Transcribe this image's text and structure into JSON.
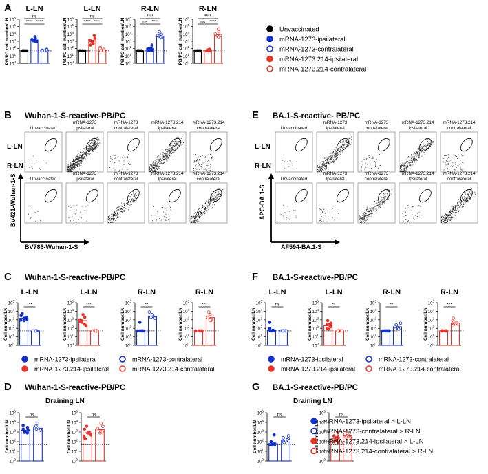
{
  "colors": {
    "blue": "#1431c8",
    "red": "#e3352b",
    "black": "#000000"
  },
  "panels": {
    "A": "A",
    "B": "B",
    "C": "C",
    "D": "D",
    "E": "E",
    "F": "F",
    "G": "G"
  },
  "labels": {
    "ns": "ns",
    "p4": "****",
    "p3": "***",
    "p2": "**",
    "ylabel_pbpc": "PB/PC cell number/LN",
    "ylabel_cell": "Cell number/LN",
    "ytick_e0": "0",
    "ytick_e1": "1",
    "ytick_e2": "2",
    "ytick_e3": "3",
    "ytick_e4": "4",
    "ytick_e5": "5",
    "L_LN": "L-LN",
    "R_LN": "R-LN",
    "unvaccinated": "Unvaccinated",
    "g_1273_ipsi": "mRNA-1273\nIpsilateral",
    "g_1273_contra": "mRNA-1273\ncontralateral",
    "g_214_ipsi": "mRNA-1273.214\nIpsilateral",
    "g_214_contra": "mRNA-1273.214\ncontralateral",
    "draining": "Draining LN"
  },
  "titles": {
    "B": "Wuhan-1-S-reactive-PB/PC",
    "E": "BA.1-S-reactive- PB/PC",
    "C": "Wuhan-1-S-reactive-PB/PC",
    "F": "BA.1-S-reactive-PB/PC",
    "D": "Wuhan-1-S-reactive-PB/PC",
    "G": "BA.1-S-reactive-PB/PC"
  },
  "axes": {
    "B_y": "BV421-Wuhan-1-S",
    "B_x": "BV786-Wuhan-1-S",
    "E_y": "APC-BA.1-S",
    "E_x": "AF594-BA.1-S"
  },
  "legends": {
    "A": [
      "Unvaccinated",
      "mRNA-1273-ipsilateral",
      "mRNA-1273-contralateral",
      "mRNA-1273.214-ipsilateral",
      "mRNA-1273.214-contralateral"
    ],
    "C": [
      "mRNA-1273-ipsilateral",
      "mRNA-1273-contralateral",
      "mRNA-1273.214-ipsilateral",
      "mRNA-1273.214-contralateral"
    ],
    "F": [
      "mRNA-1273-ipsilateral",
      "mRNA-1273-contralateral",
      "mRNA-1273.214-ipsilateral",
      "mRNA-1273.214-contralateral"
    ],
    "D": [
      "mRNA-1273-ipsilateral > L-LN",
      "mRNA-1273-contralateral > R-LN",
      "mRNA-1273.214-ipsilateral > L-LN",
      "mRNA-1273.214-contralateral > R-LN"
    ],
    "G": [
      "mRNA-1273-ipsilateral > L-LN",
      "mRNA-1273-contralateral > R-LN",
      "mRNA-1273.214-ipsilateral > L-LN",
      "mRNA-1273.214-contralateral > R-LN"
    ]
  },
  "chart_data": [
    {
      "panel": "A",
      "type": "bar",
      "title": "L-LN",
      "ylabel": "PB/PC cell number/LN",
      "yscale": "log",
      "ylim": [
        1,
        1000000
      ],
      "dotted_line": 50,
      "bars": [
        {
          "group": "Unvaccinated",
          "color": "black",
          "filled": true,
          "value": 50,
          "points": [
            50,
            50,
            50,
            50,
            50
          ]
        },
        {
          "group": "mRNA-1273-ipsilateral",
          "color": "blue",
          "filled": true,
          "value": 1500,
          "points": [
            4000,
            1800,
            1500,
            1000,
            1200,
            900,
            2500
          ]
        },
        {
          "group": "mRNA-1273-contralateral",
          "color": "blue",
          "filled": false,
          "value": 55,
          "points": [
            80,
            50,
            60,
            50,
            70,
            50
          ]
        }
      ],
      "sig": [
        {
          "a": 0,
          "b": 2,
          "label": "ns"
        },
        {
          "a": 0,
          "b": 1,
          "label": "****"
        },
        {
          "a": 1,
          "b": 2,
          "label": "****"
        }
      ]
    },
    {
      "panel": "A",
      "type": "bar",
      "title": "L-LN",
      "ylabel": "PB/PC cell number/LN",
      "yscale": "log",
      "ylim": [
        1,
        1000000
      ],
      "dotted_line": 50,
      "bars": [
        {
          "group": "Unvaccinated",
          "color": "black",
          "filled": true,
          "value": 50,
          "points": [
            50,
            50,
            50,
            50,
            50
          ]
        },
        {
          "group": "mRNA-1273.214-ipsilateral",
          "color": "red",
          "filled": true,
          "value": 1200,
          "points": [
            6000,
            2500,
            1200,
            700,
            1000,
            500,
            1500,
            300
          ]
        },
        {
          "group": "mRNA-1273.214-contralateral",
          "color": "red",
          "filled": false,
          "value": 60,
          "points": [
            150,
            50,
            80,
            60,
            50,
            100,
            50
          ]
        }
      ],
      "sig": [
        {
          "a": 0,
          "b": 2,
          "label": "ns"
        },
        {
          "a": 0,
          "b": 1,
          "label": "****"
        },
        {
          "a": 1,
          "b": 2,
          "label": "****"
        }
      ]
    },
    {
      "panel": "A",
      "type": "bar",
      "title": "R-LN",
      "ylabel": "PB/PC cell number/LN",
      "yscale": "log",
      "ylim": [
        1,
        1000000
      ],
      "dotted_line": 50,
      "bars": [
        {
          "group": "Unvaccinated",
          "color": "black",
          "filled": true,
          "value": 50,
          "points": [
            50,
            50,
            50,
            50,
            50
          ]
        },
        {
          "group": "mRNA-1273-ipsilateral",
          "color": "blue",
          "filled": true,
          "value": 110,
          "points": [
            50,
            60,
            300,
            100,
            80,
            120,
            60
          ]
        },
        {
          "group": "mRNA-1273-contralateral",
          "color": "blue",
          "filled": false,
          "value": 5000,
          "points": [
            20000,
            9000,
            5000,
            3000,
            4000,
            6000
          ]
        }
      ],
      "sig": [
        {
          "a": 0,
          "b": 2,
          "label": "****"
        },
        {
          "a": 0,
          "b": 1,
          "label": "ns"
        },
        {
          "a": 1,
          "b": 2,
          "label": "****"
        }
      ]
    },
    {
      "panel": "A",
      "type": "bar",
      "title": "R-LN",
      "ylabel": "PB/PC cell number/LN",
      "yscale": "log",
      "ylim": [
        1,
        1000000
      ],
      "dotted_line": 50,
      "bars": [
        {
          "group": "Unvaccinated",
          "color": "black",
          "filled": true,
          "value": 50,
          "points": [
            50,
            50,
            50,
            50,
            50
          ]
        },
        {
          "group": "mRNA-1273.214-ipsilateral",
          "color": "red",
          "filled": true,
          "value": 60,
          "points": [
            50,
            80,
            50,
            60,
            50,
            70
          ]
        },
        {
          "group": "mRNA-1273.214-contralateral",
          "color": "red",
          "filled": false,
          "value": 8000,
          "points": [
            50000,
            20000,
            8000,
            5000,
            6000,
            10000,
            4000
          ]
        }
      ],
      "sig": [
        {
          "a": 0,
          "b": 2,
          "label": "****"
        },
        {
          "a": 0,
          "b": 1,
          "label": "ns"
        },
        {
          "a": 1,
          "b": 2,
          "label": "****"
        }
      ]
    },
    {
      "panel": "C",
      "type": "bar",
      "title": "L-LN",
      "ylabel": "Cell number/LN",
      "yscale": "log",
      "ylim": [
        1,
        100000
      ],
      "dotted_line": 50,
      "bars": [
        {
          "group": "mRNA-1273-ipsilateral",
          "color": "blue",
          "filled": true,
          "value": 1500,
          "points": [
            5000,
            2000,
            1500,
            900,
            1200,
            3000,
            800
          ]
        },
        {
          "group": "mRNA-1273-contralateral",
          "color": "blue",
          "filled": false,
          "value": 50,
          "points": [
            50,
            50,
            50,
            50,
            50,
            50
          ]
        }
      ],
      "sig": [
        {
          "a": 0,
          "b": 1,
          "label": "***"
        }
      ]
    },
    {
      "panel": "C",
      "type": "bar",
      "title": "L-LN",
      "ylabel": "Cell number/LN",
      "yscale": "log",
      "ylim": [
        1,
        100000
      ],
      "dotted_line": 50,
      "bars": [
        {
          "group": "mRNA-1273.214-ipsilateral",
          "color": "red",
          "filled": true,
          "value": 800,
          "points": [
            4000,
            2000,
            800,
            300,
            500,
            1000,
            200,
            600
          ]
        },
        {
          "group": "mRNA-1273.214-contralateral",
          "color": "red",
          "filled": false,
          "value": 50,
          "points": [
            50,
            50,
            50,
            50,
            50,
            50,
            50
          ]
        }
      ],
      "sig": [
        {
          "a": 0,
          "b": 1,
          "label": "***"
        }
      ]
    },
    {
      "panel": "C",
      "type": "bar",
      "title": "R-LN",
      "ylabel": "Cell number/LN",
      "yscale": "log",
      "ylim": [
        1,
        100000
      ],
      "dotted_line": 50,
      "bars": [
        {
          "group": "mRNA-1273-ipsilateral",
          "color": "blue",
          "filled": true,
          "value": 60,
          "points": [
            50,
            50,
            50,
            50,
            50,
            50,
            500
          ]
        },
        {
          "group": "mRNA-1273-contralateral",
          "color": "blue",
          "filled": false,
          "value": 2500,
          "points": [
            8000,
            3000,
            2500,
            1500,
            2000,
            4000
          ]
        }
      ],
      "sig": [
        {
          "a": 0,
          "b": 1,
          "label": "**"
        }
      ]
    },
    {
      "panel": "C",
      "type": "bar",
      "title": "R-LN",
      "ylabel": "Cell number/LN",
      "yscale": "log",
      "ylim": [
        1,
        100000
      ],
      "dotted_line": 50,
      "bars": [
        {
          "group": "mRNA-1273.214-ipsilateral",
          "color": "red",
          "filled": true,
          "value": 50,
          "points": [
            50,
            50,
            50,
            50,
            50,
            50
          ]
        },
        {
          "group": "mRNA-1273.214-contralateral",
          "color": "red",
          "filled": false,
          "value": 1800,
          "points": [
            8000,
            4000,
            1800,
            800,
            1200,
            2500,
            1000
          ]
        }
      ],
      "sig": [
        {
          "a": 0,
          "b": 1,
          "label": "***"
        }
      ]
    },
    {
      "panel": "F",
      "type": "bar",
      "title": "L-LN",
      "ylabel": "Cell number/LN",
      "yscale": "log",
      "ylim": [
        1,
        100000
      ],
      "dotted_line": 50,
      "bars": [
        {
          "group": "mRNA-1273-ipsilateral",
          "color": "blue",
          "filled": true,
          "value": 60,
          "points": [
            500,
            50,
            100,
            60,
            50,
            50,
            70
          ]
        },
        {
          "group": "mRNA-1273-contralateral",
          "color": "blue",
          "filled": false,
          "value": 50,
          "points": [
            50,
            50,
            50,
            50,
            50,
            50
          ]
        }
      ],
      "sig": [
        {
          "a": 0,
          "b": 1,
          "label": "ns"
        }
      ]
    },
    {
      "panel": "F",
      "type": "bar",
      "title": "L-LN",
      "ylabel": "Cell number/LN",
      "yscale": "log",
      "ylim": [
        1,
        100000
      ],
      "dotted_line": 50,
      "bars": [
        {
          "group": "mRNA-1273.214-ipsilateral",
          "color": "red",
          "filled": true,
          "value": 200,
          "points": [
            800,
            300,
            200,
            100,
            250,
            150,
            80,
            400
          ]
        },
        {
          "group": "mRNA-1273.214-contralateral",
          "color": "red",
          "filled": false,
          "value": 50,
          "points": [
            50,
            50,
            50,
            50,
            50,
            50,
            50
          ]
        }
      ],
      "sig": [
        {
          "a": 0,
          "b": 1,
          "label": "**"
        }
      ]
    },
    {
      "panel": "F",
      "type": "bar",
      "title": "R-LN",
      "ylabel": "Cell number/LN",
      "yscale": "log",
      "ylim": [
        1,
        100000
      ],
      "dotted_line": 50,
      "bars": [
        {
          "group": "mRNA-1273-ipsilateral",
          "color": "blue",
          "filled": true,
          "value": 50,
          "points": [
            50,
            50,
            50,
            50,
            50,
            50
          ]
        },
        {
          "group": "mRNA-1273-contralateral",
          "color": "blue",
          "filled": false,
          "value": 150,
          "points": [
            400,
            200,
            150,
            100,
            120,
            250,
            80
          ]
        }
      ],
      "sig": [
        {
          "a": 0,
          "b": 1,
          "label": "**"
        }
      ]
    },
    {
      "panel": "F",
      "type": "bar",
      "title": "R-LN",
      "ylabel": "Cell number/LN",
      "yscale": "log",
      "ylim": [
        1,
        100000
      ],
      "dotted_line": 50,
      "bars": [
        {
          "group": "mRNA-1273.214-ipsilateral",
          "color": "red",
          "filled": true,
          "value": 50,
          "points": [
            50,
            50,
            50,
            50,
            50,
            50
          ]
        },
        {
          "group": "mRNA-1273.214-contralateral",
          "color": "red",
          "filled": false,
          "value": 400,
          "points": [
            1500,
            800,
            400,
            250,
            300,
            600,
            200
          ]
        }
      ],
      "sig": [
        {
          "a": 0,
          "b": 1,
          "label": "***"
        }
      ]
    },
    {
      "panel": "D",
      "type": "bar",
      "title": "",
      "ylabel": "Cell number/LN",
      "yscale": "log",
      "ylim": [
        1,
        100000
      ],
      "dotted_line": 50,
      "bars": [
        {
          "group": "mRNA-1273-ipsilateral > L-LN",
          "color": "blue",
          "filled": true,
          "value": 1500,
          "points": [
            5000,
            2000,
            1500,
            900,
            1200,
            3000,
            800
          ]
        },
        {
          "group": "mRNA-1273-contralateral > R-LN",
          "color": "blue",
          "filled": false,
          "value": 2500,
          "points": [
            8000,
            3000,
            2500,
            1500,
            2000,
            4000
          ]
        }
      ],
      "sig": [
        {
          "a": 0,
          "b": 1,
          "label": "ns"
        }
      ]
    },
    {
      "panel": "D",
      "type": "bar",
      "title": "",
      "ylabel": "Cell number/LN",
      "yscale": "log",
      "ylim": [
        1,
        100000
      ],
      "dotted_line": 50,
      "bars": [
        {
          "group": "mRNA-1273.214-ipsilateral > L-LN",
          "color": "red",
          "filled": true,
          "value": 800,
          "points": [
            4000,
            2000,
            800,
            300,
            500,
            1000,
            200,
            600
          ]
        },
        {
          "group": "mRNA-1273.214-contralateral > R-LN",
          "color": "red",
          "filled": false,
          "value": 1800,
          "points": [
            8000,
            4000,
            1800,
            800,
            1200,
            2500,
            1000
          ]
        }
      ],
      "sig": [
        {
          "a": 0,
          "b": 1,
          "label": "ns"
        }
      ]
    },
    {
      "panel": "G",
      "type": "bar",
      "title": "",
      "ylabel": "Cell number/LN",
      "yscale": "log",
      "ylim": [
        1,
        100000
      ],
      "dotted_line": 50,
      "bars": [
        {
          "group": "mRNA-1273-ipsilateral > L-LN",
          "color": "blue",
          "filled": true,
          "value": 60,
          "points": [
            500,
            50,
            100,
            60,
            50,
            50,
            70
          ]
        },
        {
          "group": "mRNA-1273-contralateral > R-LN",
          "color": "blue",
          "filled": false,
          "value": 150,
          "points": [
            400,
            200,
            150,
            100,
            120,
            250,
            80
          ]
        }
      ],
      "sig": [
        {
          "a": 0,
          "b": 1,
          "label": "ns"
        }
      ]
    },
    {
      "panel": "G",
      "type": "bar",
      "title": "",
      "ylabel": "Cell number/LN",
      "yscale": "log",
      "ylim": [
        1,
        100000
      ],
      "dotted_line": 50,
      "bars": [
        {
          "group": "mRNA-1273.214-ipsilateral > L-LN",
          "color": "red",
          "filled": true,
          "value": 200,
          "points": [
            800,
            300,
            200,
            100,
            250,
            150,
            80,
            400
          ]
        },
        {
          "group": "mRNA-1273.214-contralateral > R-LN",
          "color": "red",
          "filled": false,
          "value": 400,
          "points": [
            1500,
            800,
            400,
            250,
            300,
            600,
            200
          ]
        }
      ],
      "sig": [
        {
          "a": 0,
          "b": 1,
          "label": "ns"
        }
      ]
    }
  ]
}
